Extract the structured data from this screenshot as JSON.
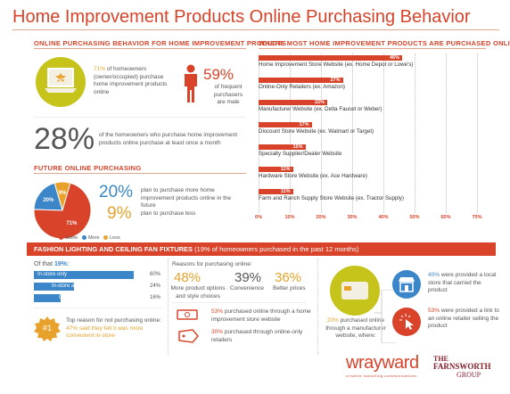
{
  "header": {
    "title_part1": "Home Improvement Products",
    "title_part2": "Online Purchasing Behavior"
  },
  "left_section": {
    "heading": "ONLINE PURCHASING BEHAVIOR FOR HOME IMPROVEMENT PRODUCTS",
    "stat1_pct": "71%",
    "stat1_text": "of homeowners (owner/occupied) purchase home improvement products online",
    "stat2_pct": "59%",
    "stat2_text": "of frequent purchasers are male",
    "stat3_pct": "28%",
    "stat3_text": "of the homeowners who purchase home improvement products online purchase at least once a month",
    "laptop_label": "BUY"
  },
  "future_section": {
    "heading": "FUTURE ONLINE PURCHASING",
    "stat1_pct": "20%",
    "stat1_text": "plan to purchase more home improvement products online in the future",
    "stat2_pct": "9%",
    "stat2_text": "plan to purchase less",
    "pie_labels": [
      "71%",
      "20%",
      "9%"
    ],
    "legend": [
      "Same",
      "More",
      "Less"
    ]
  },
  "where_section": {
    "heading": "WHERE MOST HOME IMPROVEMENT PRODUCTS ARE PURCHASED ONLINE"
  },
  "fashion_section": {
    "band_title": "FASHION LIGHTING AND CEILING FAN FIXTURES",
    "band_sub": "(19% of homeowners purchased in the past 12 months)",
    "of_that_label": "Of that",
    "of_that_pct": "19%:",
    "channels": [
      {
        "label": "In-store only",
        "pct": "60%",
        "value": 60
      },
      {
        "label": "In-store and online",
        "pct": "24%",
        "value": 24
      },
      {
        "label": "Online only",
        "pct": "16%",
        "value": 16
      }
    ],
    "badge": "#1",
    "top_reason": "Top reason for not purchasing online:",
    "top_reason_detail": "47% said they felt it was more convenient in-store",
    "reasons_heading": "Reasons for purchasing online:",
    "reasons": [
      {
        "pct": "48%",
        "text": "More product options and style choices"
      },
      {
        "pct": "39%",
        "text": "Convenience"
      },
      {
        "pct": "36%",
        "text": "Better prices"
      }
    ],
    "hi_store_pct": "53%",
    "hi_store_text": "purchased online through a home improvement store website",
    "retailer_pct": "30%",
    "retailer_text": "purchased through online-only retailers",
    "mfr_pct": "20%",
    "mfr_text": "purchased online through a manufacturer website, where:",
    "local_pct": "40%",
    "local_text": "were provided a local store that carried the product",
    "link_pct": "53%",
    "link_text": "were provided a link to an online retailer selling the product"
  },
  "footer": {
    "logo1": "wrayward",
    "logo1_tag": "creative marketing communications",
    "logo2_the": "THE",
    "logo2_name": "FARNSWORTH",
    "logo2_group": "GROUP"
  },
  "colors": {
    "accent": "#d8432a",
    "blue": "#3a86c8",
    "orange": "#e8a22b",
    "olive": "#c6c41a"
  },
  "chart_data": [
    {
      "type": "bar",
      "title": "WHERE MOST HOME IMPROVEMENT PRODUCTS ARE PURCHASED ONLINE",
      "orientation": "horizontal",
      "categories": [
        "Home Improvement Store Website (ex. Home Depot or Lowe's)",
        "Online-Only Retailers (ex. Amazon)",
        "Manufacturer Website (ex. Delta Faucet or Weber)",
        "Discount Store Website (ex. Walmart or Target)",
        "Specialty Supplier/Dealer Website",
        "Hardware Store Website (ex. Ace Hardware)",
        "Farm and Ranch Supply Store Website (ex. Tractor Supply)"
      ],
      "values": [
        46,
        27,
        22,
        17,
        15,
        11,
        11
      ],
      "value_labels": [
        "46%",
        "27%",
        "22%",
        "17%",
        "15%",
        "11%",
        "11%"
      ],
      "xlim": [
        0,
        70
      ],
      "xticks": [
        "0%",
        "10%",
        "20%",
        "30%",
        "40%",
        "50%",
        "60%",
        "70%"
      ]
    },
    {
      "type": "pie",
      "title": "FUTURE ONLINE PURCHASING",
      "categories": [
        "Same",
        "More",
        "Less"
      ],
      "values": [
        71,
        20,
        9
      ],
      "colors": [
        "#d8432a",
        "#3a86c8",
        "#e8a22b"
      ]
    }
  ]
}
